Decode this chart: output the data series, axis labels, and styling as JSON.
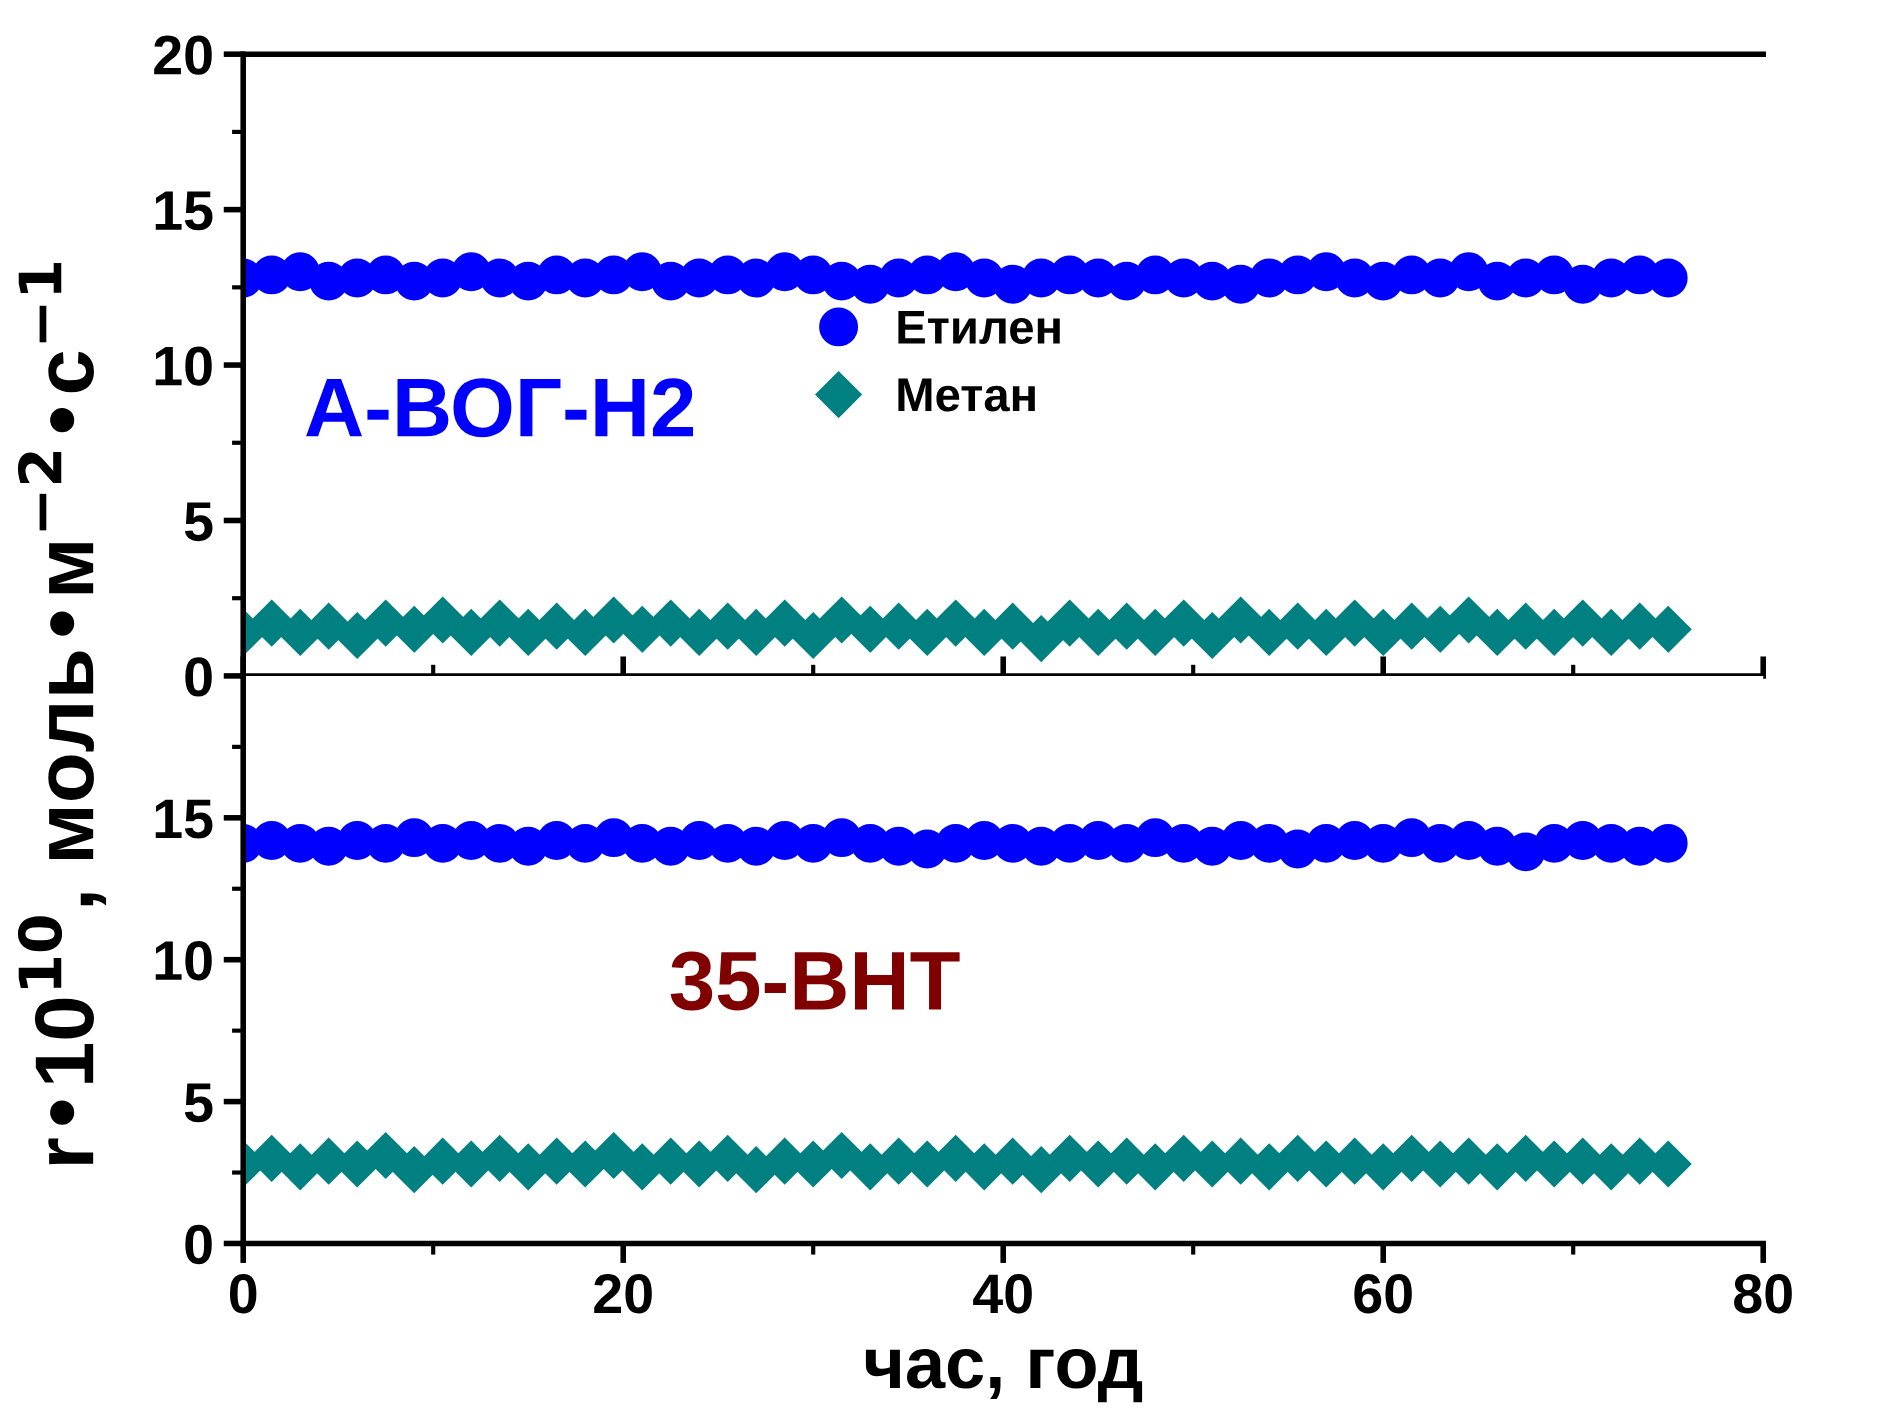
{
  "chart_data": [
    {
      "type": "scatter",
      "ylabel": "r•10$^{10}$, моль•м$^{−2}$•с$^{−1}$",
      "annotations": [
        "А-ВОГ-Н2"
      ],
      "xlim": [
        0,
        80
      ],
      "xticks": [
        0,
        20,
        40,
        60,
        80
      ],
      "ylim": [
        0,
        20
      ],
      "yticks": [
        0,
        5,
        10,
        15,
        20
      ],
      "tick_labels": "y",
      "legend": "center",
      "grid": false,
      "x": [
        0,
        1.5,
        3,
        4.5,
        6,
        7.5,
        9,
        10.5,
        12,
        13.5,
        15,
        16.5,
        18,
        19.5,
        21,
        22.5,
        24,
        25.5,
        27,
        28.5,
        30,
        31.5,
        33,
        34.5,
        36,
        37.5,
        39,
        40.5,
        42,
        43.5,
        45,
        46.5,
        48,
        49.5,
        51,
        52.5,
        54,
        55.5,
        57,
        58.5,
        60,
        61.5,
        63,
        64.5,
        66,
        67.5,
        69,
        70.5,
        72,
        73.5,
        75
      ],
      "series": [
        {
          "name": "Етилен",
          "color": "#0000ff",
          "marker": "circle",
          "values": [
            12.8,
            12.9,
            13.0,
            12.7,
            12.8,
            12.9,
            12.7,
            12.8,
            13.0,
            12.8,
            12.7,
            12.9,
            12.8,
            12.9,
            13.0,
            12.7,
            12.8,
            12.9,
            12.8,
            13.0,
            12.9,
            12.7,
            12.6,
            12.8,
            12.9,
            13.0,
            12.8,
            12.6,
            12.8,
            12.9,
            12.8,
            12.7,
            12.9,
            12.8,
            12.7,
            12.6,
            12.8,
            12.9,
            13.0,
            12.8,
            12.7,
            12.9,
            12.8,
            13.0,
            12.7,
            12.8,
            12.9,
            12.6,
            12.8,
            12.9,
            12.8
          ]
        },
        {
          "name": "Метан",
          "color": "#008080",
          "marker": "diamond",
          "values": [
            1.4,
            1.7,
            1.4,
            1.6,
            1.3,
            1.7,
            1.5,
            1.8,
            1.4,
            1.7,
            1.4,
            1.6,
            1.4,
            1.8,
            1.5,
            1.7,
            1.4,
            1.6,
            1.4,
            1.7,
            1.3,
            1.8,
            1.5,
            1.6,
            1.4,
            1.7,
            1.4,
            1.6,
            1.2,
            1.7,
            1.4,
            1.6,
            1.4,
            1.7,
            1.3,
            1.8,
            1.4,
            1.6,
            1.4,
            1.7,
            1.4,
            1.6,
            1.5,
            1.8,
            1.4,
            1.6,
            1.4,
            1.7,
            1.4,
            1.6,
            1.5
          ]
        }
      ]
    },
    {
      "type": "scatter",
      "xlabel": "час, год",
      "annotations": [
        "35-ВНТ"
      ],
      "xlim": [
        0,
        80
      ],
      "xticks": [
        0,
        20,
        40,
        60,
        80
      ],
      "ylim": [
        0,
        20
      ],
      "yticks": [
        0,
        5,
        10,
        15
      ],
      "grid": false,
      "x": [
        0,
        1.5,
        3,
        4.5,
        6,
        7.5,
        9,
        10.5,
        12,
        13.5,
        15,
        16.5,
        18,
        19.5,
        21,
        22.5,
        24,
        25.5,
        27,
        28.5,
        30,
        31.5,
        33,
        34.5,
        36,
        37.5,
        39,
        40.5,
        42,
        43.5,
        45,
        46.5,
        48,
        49.5,
        51,
        52.5,
        54,
        55.5,
        57,
        58.5,
        60,
        61.5,
        63,
        64.5,
        66,
        67.5,
        69,
        70.5,
        72,
        73.5,
        75
      ],
      "series": [
        {
          "color": "#0000ff",
          "marker": "circle",
          "values": [
            14.1,
            14.2,
            14.1,
            14.0,
            14.2,
            14.1,
            14.3,
            14.1,
            14.2,
            14.1,
            14.0,
            14.2,
            14.1,
            14.3,
            14.1,
            14.0,
            14.2,
            14.1,
            14.0,
            14.2,
            14.1,
            14.3,
            14.1,
            14.0,
            13.9,
            14.1,
            14.2,
            14.1,
            14.0,
            14.1,
            14.2,
            14.1,
            14.3,
            14.1,
            14.0,
            14.2,
            14.1,
            13.9,
            14.1,
            14.2,
            14.1,
            14.3,
            14.1,
            14.2,
            14.0,
            13.8,
            14.1,
            14.2,
            14.1,
            14.0,
            14.1
          ]
        },
        {
          "color": "#008080",
          "marker": "diamond",
          "values": [
            2.8,
            3.0,
            2.7,
            2.9,
            2.8,
            3.1,
            2.6,
            2.9,
            2.8,
            3.0,
            2.7,
            2.9,
            2.8,
            3.1,
            2.7,
            2.9,
            2.8,
            3.0,
            2.6,
            2.9,
            2.8,
            3.1,
            2.7,
            2.9,
            2.8,
            3.0,
            2.7,
            2.9,
            2.6,
            3.0,
            2.8,
            2.9,
            2.7,
            3.0,
            2.8,
            2.9,
            2.7,
            3.0,
            2.8,
            2.9,
            2.7,
            3.0,
            2.8,
            2.9,
            2.7,
            3.0,
            2.8,
            2.9,
            2.7,
            2.9,
            2.8
          ]
        }
      ]
    }
  ]
}
